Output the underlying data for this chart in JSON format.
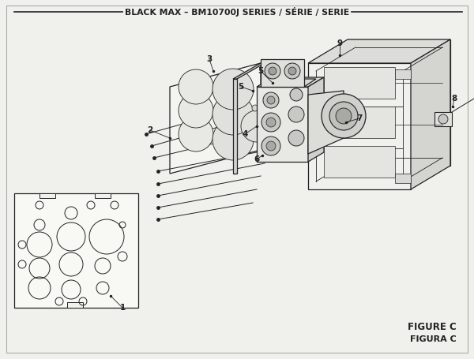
{
  "title": "BLACK MAX – BM10700J SERIES / SÉRIE / SERIE",
  "figure_label": "FIGURE C",
  "figure_label2": "FIGURA C",
  "bg_color": "#f0f0ec",
  "line_color": "#222222",
  "title_line_color": "#333333"
}
